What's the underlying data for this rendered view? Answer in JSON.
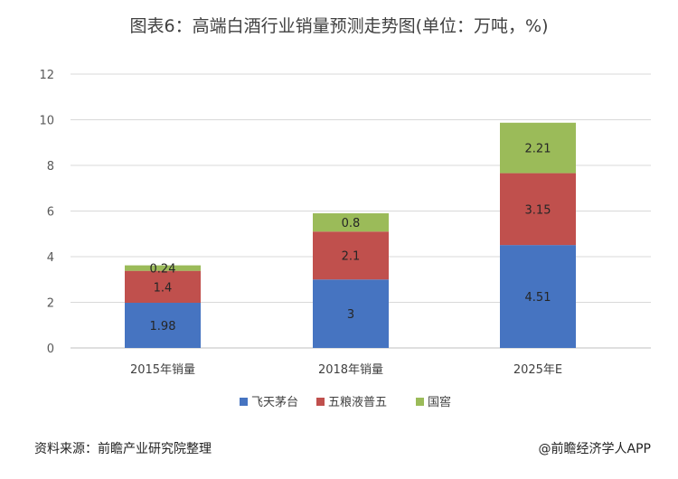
{
  "title": "图表6：高端白酒行业销量预测走势图(单位：万吨，%)",
  "source": "资料来源：前瞻产业研究院整理",
  "credit": "@前瞻经济学人APP",
  "chart_data": {
    "type": "bar",
    "stacked": true,
    "categories": [
      "2015年销量",
      "2018年销量",
      "2025年E"
    ],
    "series": [
      {
        "name": "飞天茅台",
        "color": "#4674c1",
        "values": [
          1.98,
          3,
          4.51
        ]
      },
      {
        "name": "五粮液普五",
        "color": "#c0504d",
        "values": [
          1.4,
          2.1,
          3.15
        ]
      },
      {
        "name": "国窖",
        "color": "#9bbb59",
        "values": [
          0.24,
          0.8,
          2.21
        ]
      }
    ],
    "data_labels": [
      [
        "1.98",
        "3",
        "4.51"
      ],
      [
        "1.4",
        "2.1",
        "3.15"
      ],
      [
        "0.24",
        "0.8",
        "2.21"
      ]
    ],
    "ylim": [
      0,
      12
    ],
    "yticks": [
      0,
      2,
      4,
      6,
      8,
      10,
      12
    ],
    "grid": true,
    "legend": "bottom"
  }
}
